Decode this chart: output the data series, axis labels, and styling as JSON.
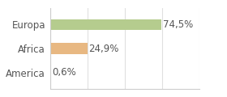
{
  "categories": [
    "America",
    "Africa",
    "Europa"
  ],
  "values": [
    0.6,
    24.9,
    74.5
  ],
  "labels": [
    "0,6%",
    "24,9%",
    "74,5%"
  ],
  "bar_colors": [
    "#c8d99a",
    "#e8b882",
    "#b5cc8e"
  ],
  "background_color": "#ffffff",
  "xlim": [
    0,
    100
  ],
  "label_fontsize": 8.5,
  "tick_fontsize": 8.5,
  "tick_color": "#555555",
  "label_color": "#555555",
  "grid_color": "#e0e0e0",
  "bar_height": 0.45
}
